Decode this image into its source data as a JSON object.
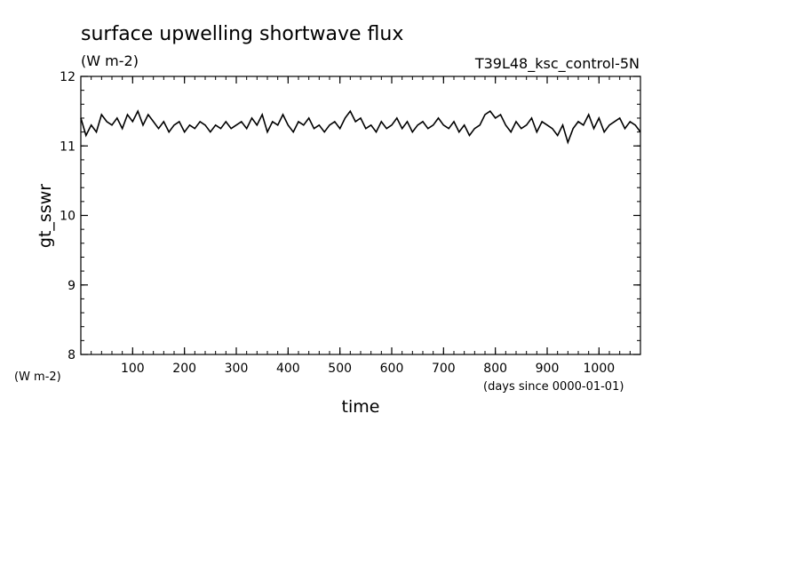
{
  "chart_data": {
    "type": "line",
    "title": "surface upwelling shortwave flux",
    "units": "(W m-2)",
    "run_label": "T39L48_ksc_control-5N",
    "ylabel": "gt_sswr",
    "yunits": "(W m-2)",
    "xlabel": "time",
    "xunits": "(days since 0000-01-01)",
    "xlim": [
      0,
      1080
    ],
    "ylim": [
      8,
      12
    ],
    "xticks": [
      100,
      200,
      300,
      400,
      500,
      600,
      700,
      800,
      900,
      1000
    ],
    "yticks": [
      8,
      9,
      10,
      11,
      12
    ],
    "grid": false,
    "series": [
      {
        "x": [
          0,
          10,
          20,
          30,
          40,
          50,
          60,
          70,
          80,
          90,
          100,
          110,
          120,
          130,
          140,
          150,
          160,
          170,
          180,
          190,
          200,
          210,
          220,
          230,
          240,
          250,
          260,
          270,
          280,
          290,
          300,
          310,
          320,
          330,
          340,
          350,
          360,
          370,
          380,
          390,
          400,
          410,
          420,
          430,
          440,
          450,
          460,
          470,
          480,
          490,
          500,
          510,
          520,
          530,
          540,
          550,
          560,
          570,
          580,
          590,
          600,
          610,
          620,
          630,
          640,
          650,
          660,
          670,
          680,
          690,
          700,
          710,
          720,
          730,
          740,
          750,
          760,
          770,
          780,
          790,
          800,
          810,
          820,
          830,
          840,
          850,
          860,
          870,
          880,
          890,
          900,
          910,
          920,
          930,
          940,
          950,
          960,
          970,
          980,
          990,
          1000,
          1010,
          1020,
          1030,
          1040,
          1050,
          1060,
          1070,
          1080
        ],
        "values": [
          11.4,
          11.15,
          11.3,
          11.2,
          11.45,
          11.35,
          11.3,
          11.4,
          11.25,
          11.45,
          11.35,
          11.5,
          11.3,
          11.45,
          11.35,
          11.25,
          11.35,
          11.2,
          11.3,
          11.35,
          11.2,
          11.3,
          11.25,
          11.35,
          11.3,
          11.2,
          11.3,
          11.25,
          11.35,
          11.25,
          11.3,
          11.35,
          11.25,
          11.4,
          11.3,
          11.45,
          11.2,
          11.35,
          11.3,
          11.45,
          11.3,
          11.2,
          11.35,
          11.3,
          11.4,
          11.25,
          11.3,
          11.2,
          11.3,
          11.35,
          11.25,
          11.4,
          11.5,
          11.35,
          11.4,
          11.25,
          11.3,
          11.2,
          11.35,
          11.25,
          11.3,
          11.4,
          11.25,
          11.35,
          11.2,
          11.3,
          11.35,
          11.25,
          11.3,
          11.4,
          11.3,
          11.25,
          11.35,
          11.2,
          11.3,
          11.15,
          11.25,
          11.3,
          11.45,
          11.5,
          11.4,
          11.45,
          11.3,
          11.2,
          11.35,
          11.25,
          11.3,
          11.4,
          11.2,
          11.35,
          11.3,
          11.25,
          11.15,
          11.3,
          11.05,
          11.25,
          11.35,
          11.3,
          11.45,
          11.25,
          11.4,
          11.2,
          11.3,
          11.35,
          11.4,
          11.25,
          11.35,
          11.3,
          11.2
        ]
      }
    ]
  }
}
